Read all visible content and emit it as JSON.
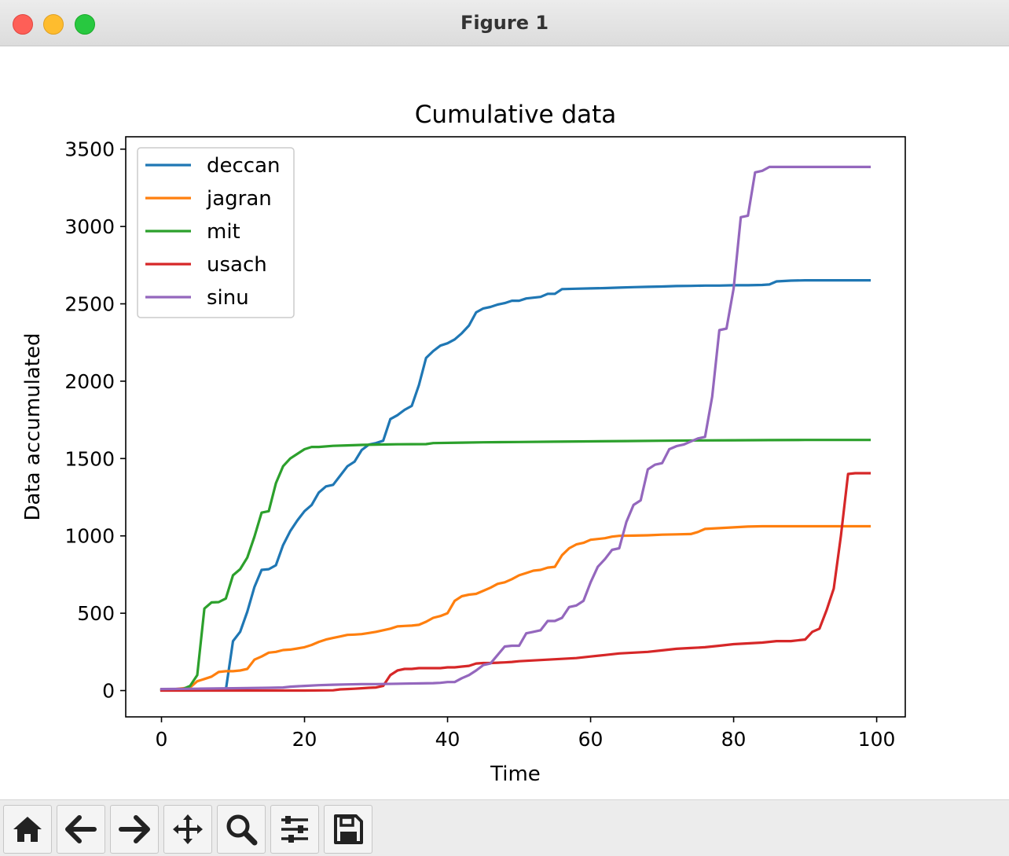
{
  "window": {
    "title": "Figure 1"
  },
  "toolbar": {
    "buttons": [
      {
        "name": "home-button",
        "icon": "home-icon"
      },
      {
        "name": "back-button",
        "icon": "arrow-left-icon"
      },
      {
        "name": "forward-button",
        "icon": "arrow-right-icon"
      },
      {
        "name": "pan-button",
        "icon": "move-icon"
      },
      {
        "name": "zoom-button",
        "icon": "zoom-icon"
      },
      {
        "name": "configure-subplots-button",
        "icon": "sliders-icon"
      },
      {
        "name": "save-button",
        "icon": "save-icon"
      }
    ]
  },
  "chart_data": {
    "type": "line",
    "title": "Cumulative data",
    "xlabel": "Time",
    "ylabel": "Data accumulated",
    "xlim": [
      -5,
      104
    ],
    "ylim": [
      -170,
      3580
    ],
    "xticks": [
      0,
      20,
      40,
      60,
      80,
      100
    ],
    "yticks": [
      0,
      500,
      1000,
      1500,
      2000,
      2500,
      3000,
      3500
    ],
    "grid": false,
    "legend_position": "upper left",
    "series": [
      {
        "name": "deccan",
        "color": "#1f77b4",
        "x": [
          0,
          2,
          4,
          6,
          8,
          9,
          10,
          11,
          12,
          13,
          14,
          15,
          16,
          17,
          18,
          19,
          20,
          21,
          22,
          23,
          24,
          25,
          26,
          27,
          28,
          29,
          30,
          31,
          32,
          33,
          34,
          35,
          36,
          37,
          38,
          39,
          40,
          41,
          42,
          43,
          44,
          45,
          46,
          47,
          48,
          49,
          50,
          51,
          52,
          53,
          54,
          55,
          56,
          58,
          60,
          62,
          64,
          66,
          68,
          70,
          72,
          74,
          76,
          78,
          80,
          82,
          84,
          85,
          86,
          88,
          90,
          92,
          94,
          96,
          99
        ],
        "values": [
          5,
          5,
          5,
          5,
          5,
          5,
          320,
          380,
          510,
          670,
          780,
          785,
          810,
          940,
          1030,
          1100,
          1160,
          1200,
          1280,
          1320,
          1330,
          1390,
          1450,
          1480,
          1555,
          1590,
          1600,
          1615,
          1755,
          1780,
          1815,
          1840,
          1975,
          2150,
          2195,
          2230,
          2245,
          2270,
          2310,
          2360,
          2445,
          2470,
          2480,
          2495,
          2505,
          2520,
          2520,
          2535,
          2540,
          2545,
          2565,
          2565,
          2595,
          2598,
          2600,
          2602,
          2605,
          2608,
          2610,
          2612,
          2615,
          2616,
          2618,
          2618,
          2620,
          2620,
          2622,
          2625,
          2645,
          2650,
          2652,
          2652,
          2652,
          2652,
          2652
        ]
      },
      {
        "name": "jagran",
        "color": "#ff7f0e",
        "x": [
          0,
          2,
          3,
          4,
          5,
          6,
          7,
          8,
          9,
          10,
          11,
          12,
          13,
          14,
          15,
          16,
          17,
          18,
          19,
          20,
          21,
          22,
          23,
          24,
          25,
          26,
          27,
          28,
          29,
          30,
          31,
          32,
          33,
          34,
          35,
          36,
          37,
          38,
          39,
          40,
          41,
          42,
          43,
          44,
          45,
          46,
          47,
          48,
          49,
          50,
          51,
          52,
          53,
          54,
          55,
          56,
          57,
          58,
          59,
          60,
          61,
          62,
          63,
          64,
          66,
          68,
          70,
          72,
          74,
          75,
          76,
          78,
          80,
          82,
          84,
          86,
          88,
          90,
          92,
          94,
          96,
          99
        ],
        "values": [
          5,
          10,
          15,
          20,
          60,
          75,
          90,
          120,
          125,
          125,
          130,
          140,
          200,
          220,
          245,
          250,
          262,
          265,
          272,
          280,
          295,
          315,
          330,
          340,
          350,
          360,
          362,
          365,
          372,
          380,
          390,
          400,
          415,
          418,
          420,
          425,
          445,
          470,
          482,
          500,
          580,
          610,
          620,
          625,
          645,
          665,
          690,
          700,
          720,
          745,
          760,
          775,
          780,
          795,
          800,
          875,
          920,
          945,
          955,
          975,
          980,
          985,
          995,
          1000,
          1002,
          1004,
          1008,
          1010,
          1012,
          1025,
          1045,
          1050,
          1055,
          1060,
          1062,
          1062,
          1062,
          1062,
          1062,
          1062,
          1062,
          1062
        ]
      },
      {
        "name": "mit",
        "color": "#2ca02c",
        "x": [
          0,
          2,
          3,
          4,
          5,
          6,
          7,
          8,
          9,
          10,
          11,
          12,
          13,
          14,
          15,
          16,
          17,
          18,
          19,
          20,
          21,
          22,
          24,
          26,
          28,
          30,
          33,
          37,
          38,
          42,
          45,
          50,
          55,
          60,
          65,
          70,
          75,
          80,
          85,
          90,
          95,
          99
        ],
        "values": [
          5,
          8,
          10,
          30,
          100,
          530,
          570,
          572,
          595,
          745,
          785,
          860,
          995,
          1150,
          1160,
          1340,
          1450,
          1500,
          1530,
          1560,
          1575,
          1575,
          1582,
          1585,
          1588,
          1590,
          1592,
          1593,
          1600,
          1603,
          1605,
          1607,
          1609,
          1611,
          1613,
          1615,
          1617,
          1618,
          1619,
          1620,
          1620,
          1620
        ]
      },
      {
        "name": "usach",
        "color": "#d62728",
        "x": [
          0,
          5,
          10,
          15,
          20,
          24,
          25,
          26,
          27,
          28,
          29,
          30,
          31,
          32,
          33,
          34,
          35,
          36,
          37,
          38,
          39,
          40,
          41,
          42,
          43,
          44,
          45,
          46,
          47,
          48,
          49,
          50,
          52,
          54,
          56,
          58,
          60,
          62,
          64,
          66,
          68,
          70,
          72,
          74,
          76,
          78,
          80,
          82,
          84,
          86,
          88,
          90,
          91,
          92,
          93,
          94,
          95,
          96,
          97,
          99
        ],
        "values": [
          0,
          0,
          0,
          0,
          0,
          2,
          8,
          10,
          12,
          15,
          18,
          20,
          30,
          100,
          130,
          140,
          140,
          145,
          145,
          145,
          145,
          150,
          150,
          155,
          160,
          175,
          178,
          178,
          180,
          182,
          185,
          190,
          195,
          200,
          205,
          210,
          220,
          230,
          240,
          245,
          250,
          260,
          270,
          275,
          280,
          290,
          300,
          305,
          310,
          320,
          320,
          330,
          380,
          400,
          520,
          660,
          1000,
          1400,
          1405,
          1405
        ]
      },
      {
        "name": "sinu",
        "color": "#9467bd",
        "x": [
          0,
          5,
          10,
          15,
          17,
          18,
          20,
          22,
          24,
          26,
          28,
          30,
          34,
          38,
          39,
          40,
          41,
          42,
          43,
          44,
          45,
          46,
          47,
          48,
          49,
          50,
          51,
          52,
          53,
          54,
          55,
          56,
          57,
          58,
          59,
          60,
          61,
          62,
          63,
          64,
          65,
          66,
          67,
          68,
          69,
          70,
          71,
          72,
          73,
          74,
          75,
          76,
          77,
          78,
          79,
          80,
          81,
          82,
          83,
          84,
          85,
          86,
          90,
          95,
          99
        ],
        "values": [
          10,
          12,
          15,
          18,
          20,
          25,
          30,
          35,
          38,
          40,
          42,
          42,
          45,
          48,
          50,
          55,
          55,
          80,
          100,
          130,
          165,
          175,
          230,
          285,
          290,
          290,
          370,
          380,
          390,
          450,
          450,
          470,
          540,
          550,
          580,
          700,
          800,
          850,
          910,
          920,
          1090,
          1200,
          1230,
          1430,
          1460,
          1470,
          1560,
          1580,
          1590,
          1610,
          1630,
          1640,
          1900,
          2330,
          2340,
          2600,
          3060,
          3070,
          3350,
          3360,
          3385,
          3385,
          3385,
          3385,
          3385
        ]
      }
    ]
  }
}
